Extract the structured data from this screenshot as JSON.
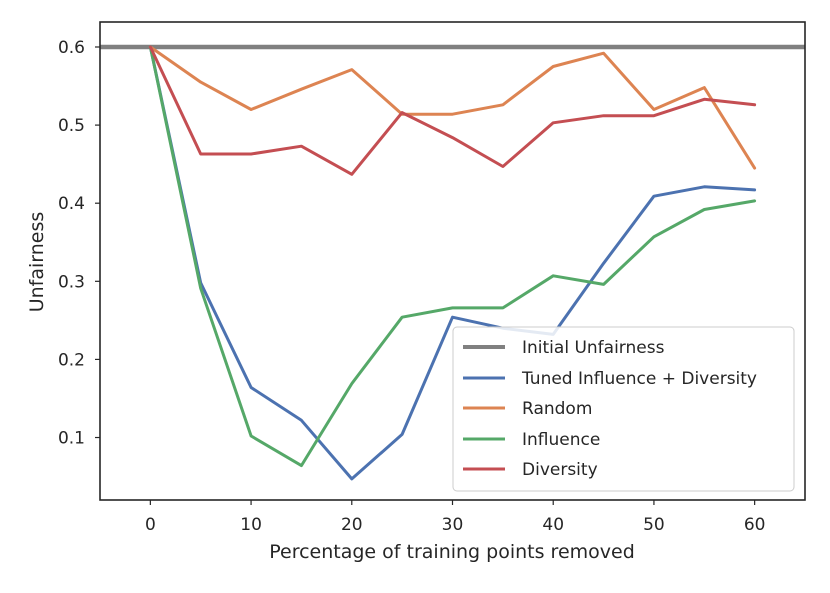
{
  "chart_data": {
    "type": "line",
    "title": "",
    "xlabel": "Percentage of training points removed",
    "ylabel": "Unfairness",
    "xlim": [
      -5,
      65
    ],
    "ylim": [
      0.02,
      0.632
    ],
    "xticks": [
      0,
      10,
      20,
      30,
      40,
      50,
      60
    ],
    "xtick_labels": [
      "0",
      "10",
      "20",
      "30",
      "40",
      "50",
      "60"
    ],
    "yticks": [
      0.1,
      0.2,
      0.3,
      0.4,
      0.5,
      0.6
    ],
    "ytick_labels": [
      "0.1",
      "0.2",
      "0.3",
      "0.4",
      "0.5",
      "0.6"
    ],
    "grid": false,
    "legend_position": "lower-right",
    "x": [
      0,
      5,
      10,
      15,
      20,
      25,
      30,
      35,
      40,
      45,
      50,
      55,
      60
    ],
    "reference_line": {
      "name": "Initial Unfairness",
      "value": 0.6,
      "color": "#808080"
    },
    "series": [
      {
        "name": "Tuned Influence + Diversity",
        "color": "#4c72b0",
        "values": [
          0.6,
          0.298,
          0.164,
          0.122,
          0.047,
          0.104,
          0.254,
          0.24,
          0.232,
          0.323,
          0.409,
          0.421,
          0.417
        ]
      },
      {
        "name": "Random",
        "color": "#dd8452",
        "values": [
          0.6,
          0.555,
          0.52,
          0.546,
          0.571,
          0.514,
          0.514,
          0.526,
          0.575,
          0.592,
          0.52,
          0.548,
          0.445
        ]
      },
      {
        "name": "Influence",
        "color": "#55a868",
        "values": [
          0.6,
          0.291,
          0.102,
          0.064,
          0.169,
          0.254,
          0.266,
          0.266,
          0.307,
          0.296,
          0.357,
          0.392,
          0.403
        ]
      },
      {
        "name": "Diversity",
        "color": "#c44e52",
        "values": [
          0.6,
          0.463,
          0.463,
          0.473,
          0.437,
          0.516,
          0.484,
          0.447,
          0.503,
          0.512,
          0.512,
          0.533,
          0.526
        ]
      }
    ]
  }
}
